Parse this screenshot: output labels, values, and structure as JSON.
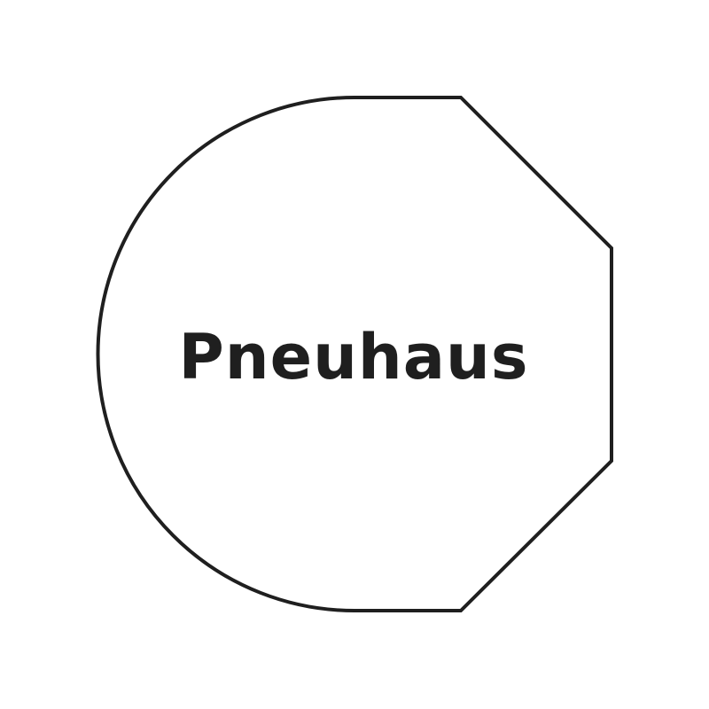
{
  "logo": {
    "wordmark": "Pneuhaus",
    "stroke_color": "#1f1f1f",
    "text_color": "#1f1f1f",
    "background_color": "#ffffff"
  }
}
